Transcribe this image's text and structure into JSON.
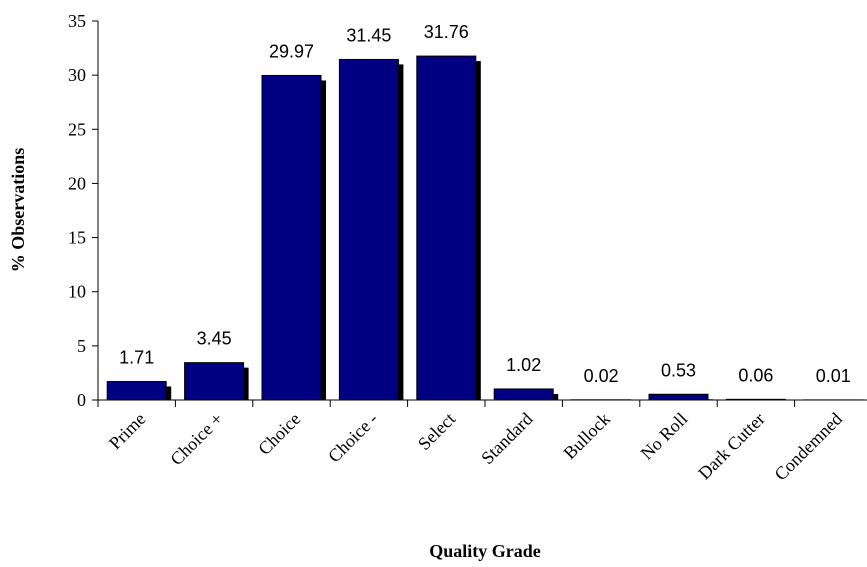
{
  "chart_data": {
    "type": "bar",
    "title": "",
    "xlabel": "Quality Grade",
    "ylabel": "% Observations",
    "categories": [
      "Prime",
      "Choice +",
      "Choice",
      "Choice -",
      "Select",
      "Standard",
      "Bullock",
      "No Roll",
      "Dark Cutter",
      "Condemned"
    ],
    "values": [
      1.71,
      3.45,
      29.97,
      31.45,
      31.76,
      1.02,
      0.02,
      0.53,
      0.06,
      0.01
    ],
    "data_labels": [
      "1.71",
      "3.45",
      "29.97",
      "31.45",
      "31.76",
      "1.02",
      "0.02",
      "0.53",
      "0.06",
      "0.01"
    ],
    "ylim": [
      0,
      35
    ],
    "yticks": [
      0,
      5,
      10,
      15,
      20,
      25,
      30,
      35
    ],
    "grid": false,
    "legend": "none",
    "bar_color": "#000080",
    "shadow_color": "#000000"
  }
}
